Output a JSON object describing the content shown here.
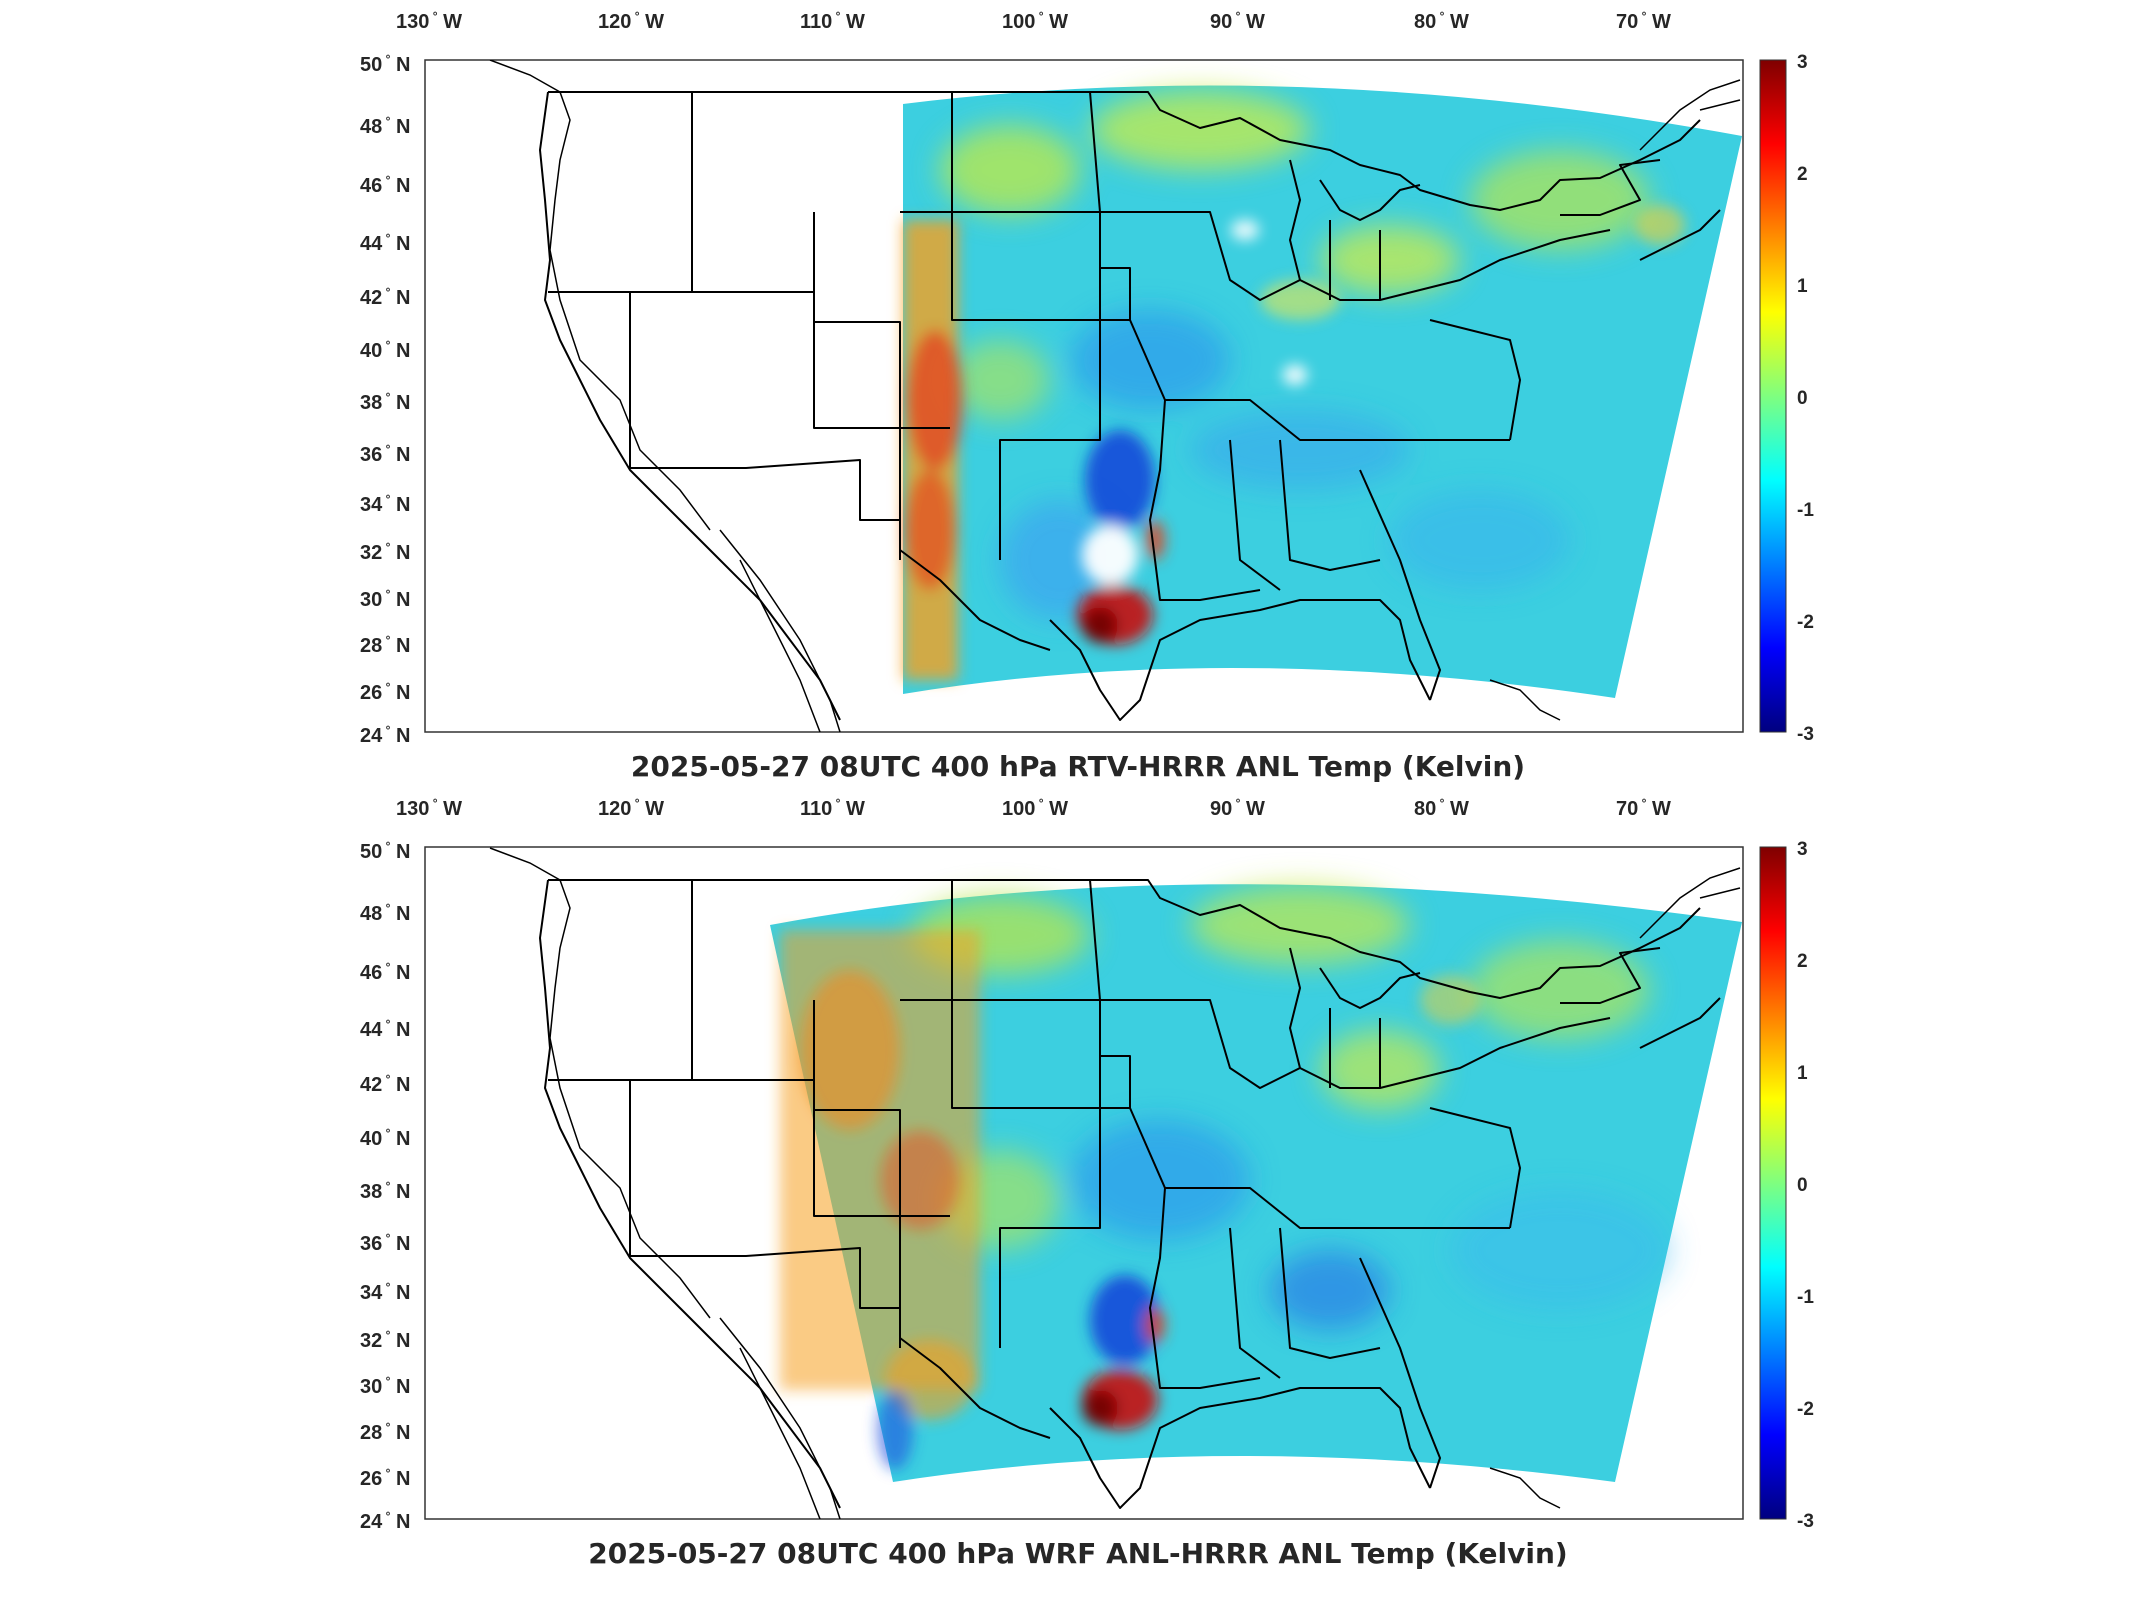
{
  "panels": [
    {
      "title": "2025-05-27 08UTC 400 hPa RTV-HRRR ANL Temp (Kelvin)",
      "lon_labels": [
        "130",
        "120",
        "110",
        "100",
        "90",
        "80",
        "70"
      ],
      "lon_suffix": "W",
      "lat_labels": [
        "50",
        "48",
        "46",
        "44",
        "42",
        "40",
        "38",
        "36",
        "34",
        "32",
        "30",
        "28",
        "26",
        "24"
      ],
      "lat_suffix": "N",
      "colorbar": {
        "ticks": [
          "3",
          "2",
          "1",
          "0",
          "-1",
          "-2",
          "-3"
        ],
        "min": -3,
        "max": 3
      }
    },
    {
      "title": "2025-05-27 08UTC 400 hPa WRF ANL-HRRR ANL Temp (Kelvin)",
      "lon_labels": [
        "130",
        "120",
        "110",
        "100",
        "90",
        "80",
        "70"
      ],
      "lon_suffix": "W",
      "lat_labels": [
        "50",
        "48",
        "46",
        "44",
        "42",
        "40",
        "38",
        "36",
        "34",
        "32",
        "30",
        "28",
        "26",
        "24"
      ],
      "lat_suffix": "N",
      "colorbar": {
        "ticks": [
          "3",
          "2",
          "1",
          "0",
          "-1",
          "-2",
          "-3"
        ],
        "min": -3,
        "max": 3
      }
    }
  ],
  "colormap": "jet",
  "colors": {
    "field_base": "#3ccfe0",
    "colormap_stops": [
      "#00007f",
      "#0000ff",
      "#007fff",
      "#00ffff",
      "#7fff7f",
      "#ffff00",
      "#ff7f00",
      "#ff0000",
      "#7f0000"
    ],
    "border": "#000000"
  }
}
